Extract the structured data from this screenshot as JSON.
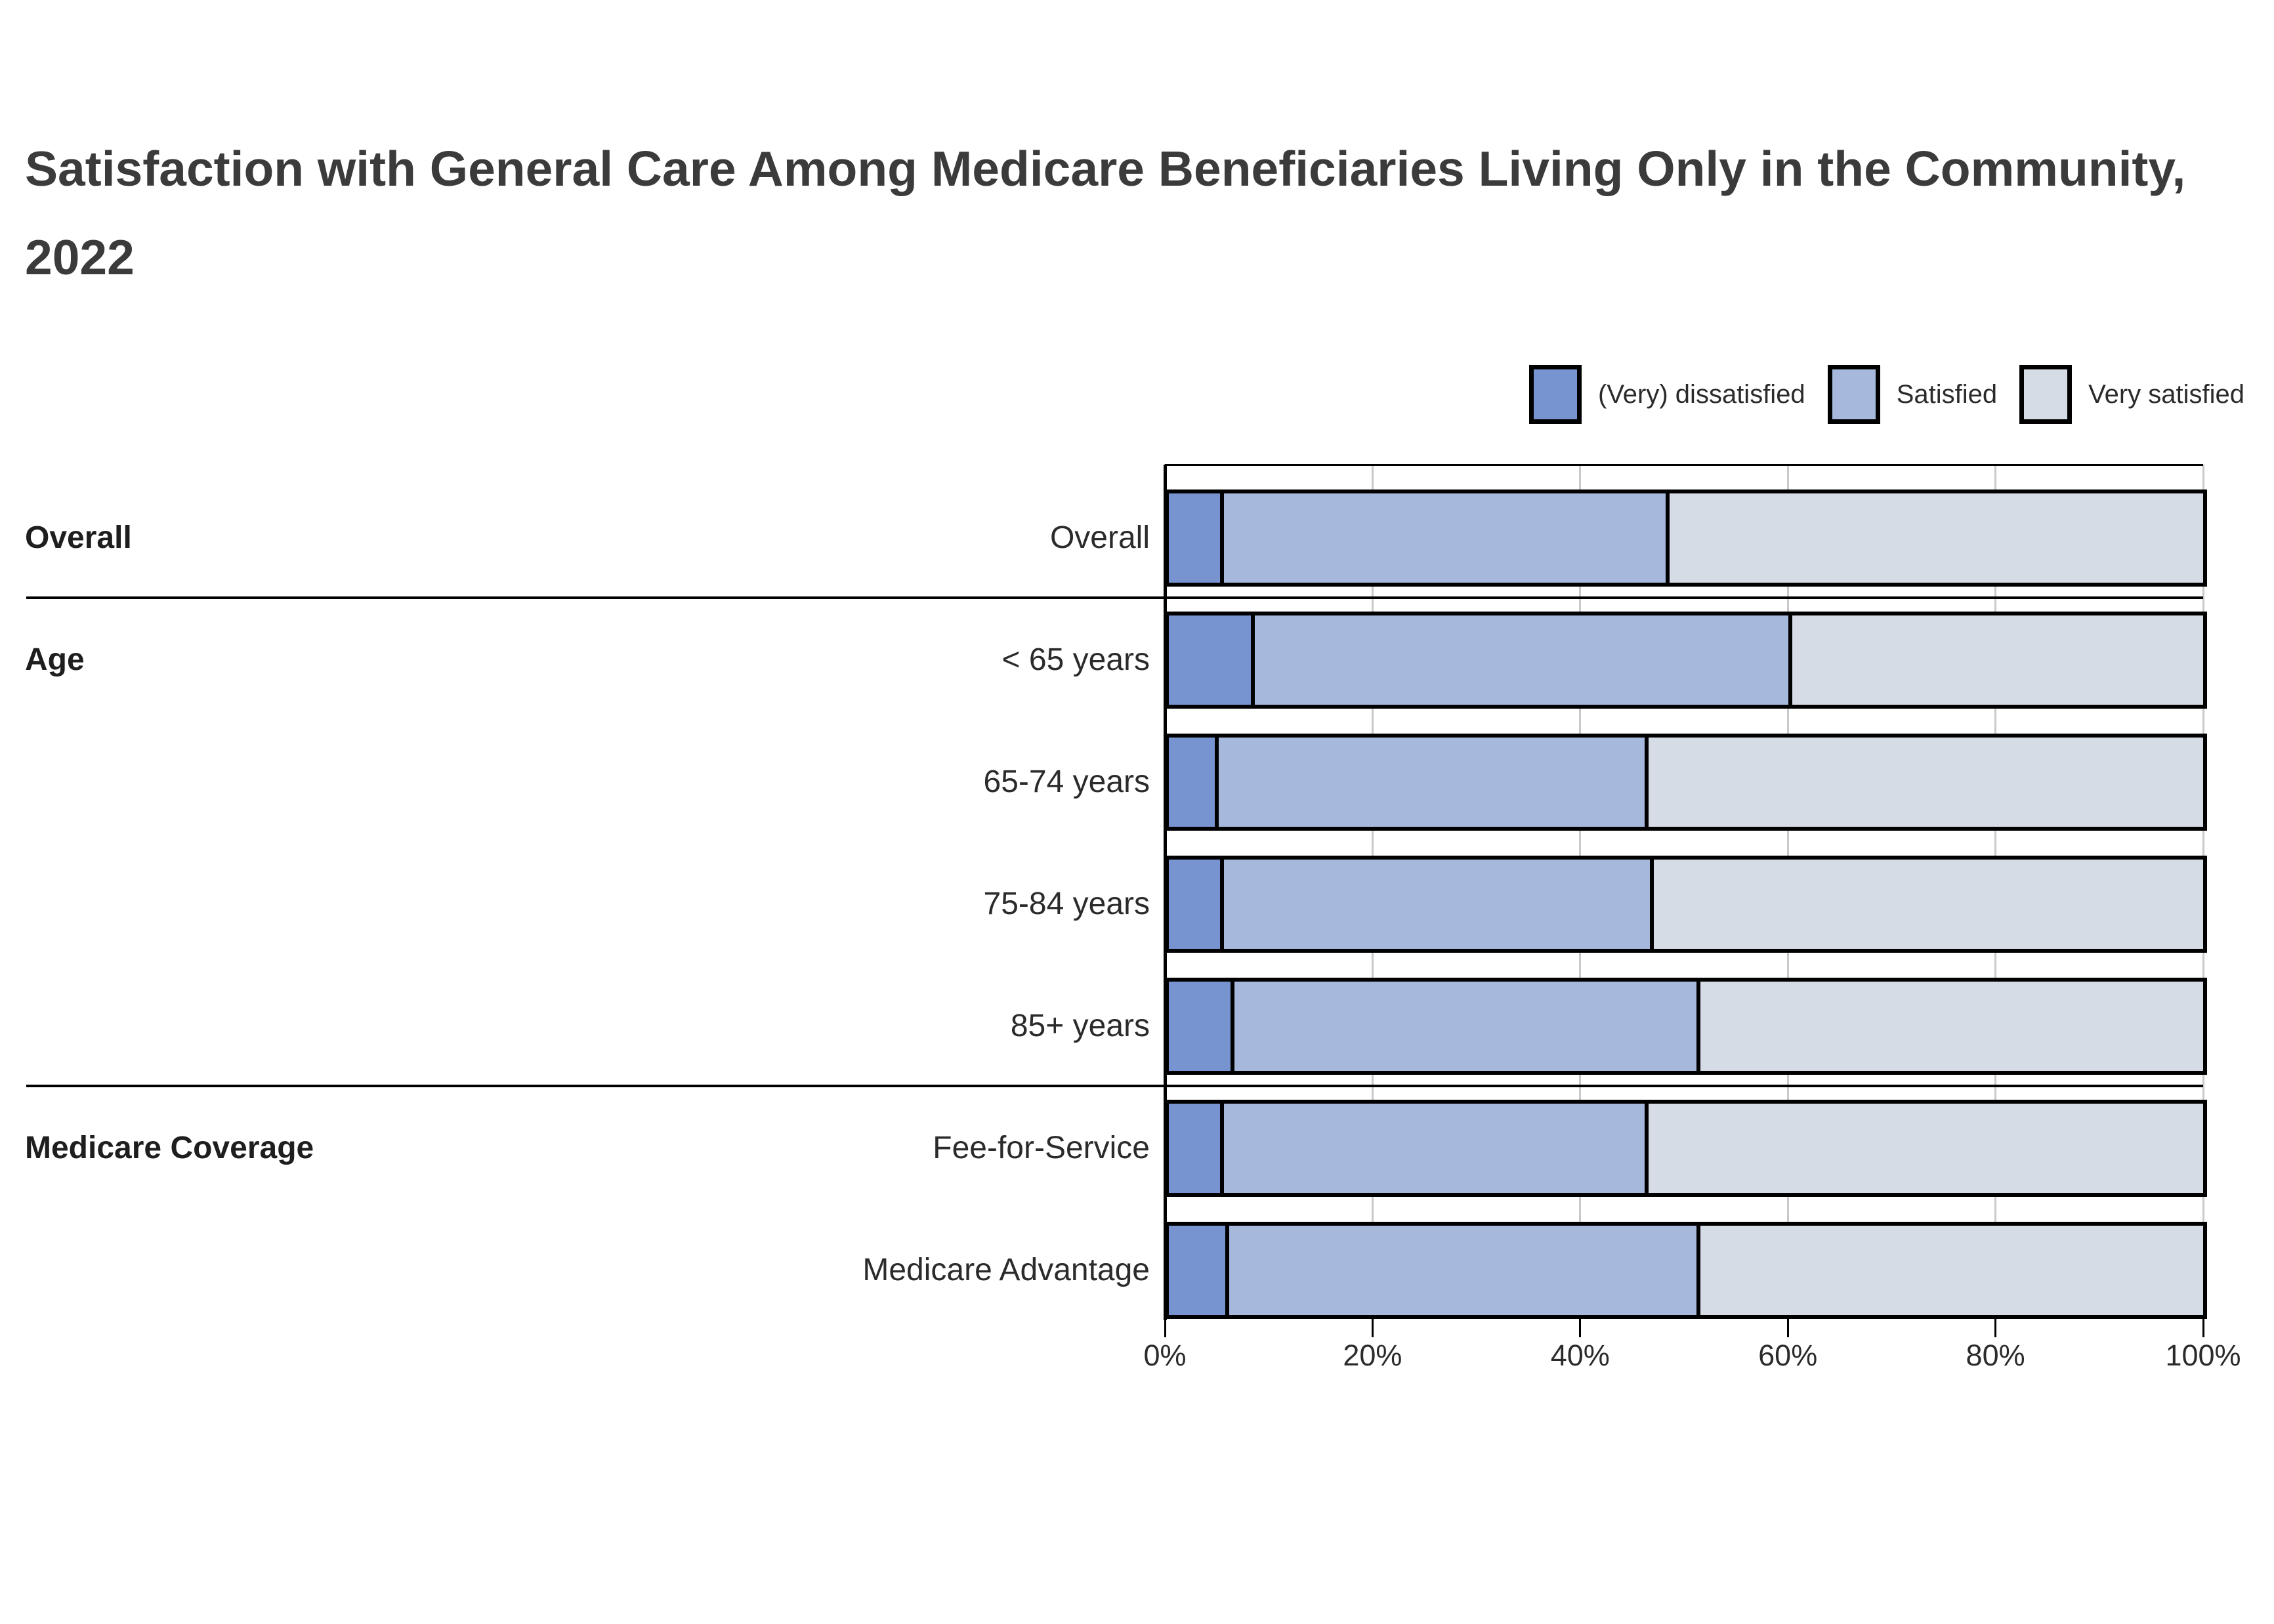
{
  "chart_data": {
    "type": "bar",
    "orientation": "horizontal-stacked",
    "title": "Satisfaction with General Care Among Medicare Beneficiaries Living Only in the Community, 2022",
    "legend": [
      "(Very) dissatisfied",
      "Satisfied",
      "Very satisfied"
    ],
    "series_colors": [
      "#7794d1",
      "#a6b8dc",
      "#d6dce5"
    ],
    "x_axis": {
      "tick_labels": [
        "0%",
        "20%",
        "40%",
        "60%",
        "80%",
        "100%"
      ],
      "tick_values": [
        0,
        20,
        40,
        60,
        80,
        100
      ],
      "range_pct": [
        0,
        100
      ],
      "grid": true
    },
    "sections": [
      {
        "group_label": "Overall",
        "rows": [
          {
            "label": "Overall",
            "values_pct": [
              5,
              43,
              52
            ]
          }
        ]
      },
      {
        "group_label": "Age",
        "rows": [
          {
            "label": "< 65 years",
            "values_pct": [
              8,
              52,
              40
            ]
          },
          {
            "label": "65-74 years",
            "values_pct": [
              4.5,
              41.5,
              54
            ]
          },
          {
            "label": "75-84 years",
            "values_pct": [
              5,
              41.5,
              53.5
            ]
          },
          {
            "label": "85+ years",
            "values_pct": [
              6,
              45,
              49
            ]
          }
        ]
      },
      {
        "group_label": "Medicare Coverage",
        "rows": [
          {
            "label": "Fee-for-Service",
            "values_pct": [
              5,
              41,
              54
            ]
          },
          {
            "label": "Medicare Advantage",
            "values_pct": [
              5.5,
              45.5,
              49
            ]
          }
        ]
      }
    ]
  },
  "colors": {
    "background": "#ffffff",
    "title_text": "#3b3b3b",
    "label_text": "#2b2b2b",
    "bar_border": "#000000",
    "gridline": "#c9c9c9",
    "axis": "#000000"
  }
}
